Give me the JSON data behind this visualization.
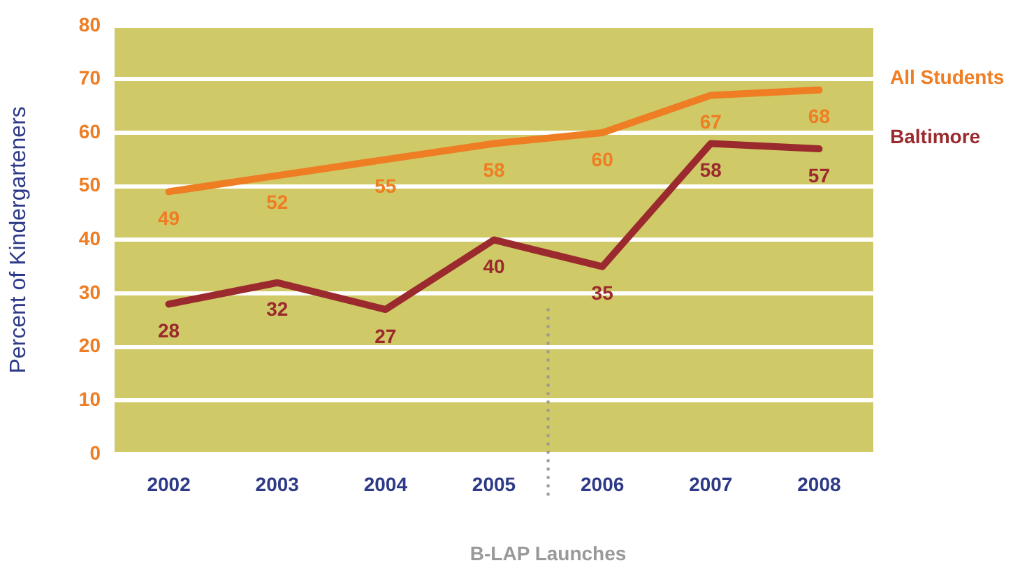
{
  "chart_data": {
    "type": "line",
    "ylabel": "Percent of Kindergarteners",
    "x": [
      2002,
      2003,
      2004,
      2005,
      2006,
      2007,
      2008
    ],
    "xlim": [
      2001.5,
      2008.5
    ],
    "xticks": [
      2002,
      2003,
      2004,
      2005,
      2006,
      2007,
      2008
    ],
    "ylim": [
      0,
      80
    ],
    "yticks": [
      0,
      10,
      20,
      30,
      40,
      50,
      60,
      70,
      80
    ],
    "grid": "y",
    "legend": "right",
    "marker": "none",
    "line_style": "solid",
    "data_labels": true,
    "series": [
      {
        "name": "All Students",
        "color": "#ee7d23",
        "values": [
          49,
          52,
          55,
          58,
          60,
          67,
          68
        ]
      },
      {
        "name": "Baltimore",
        "color": "#9b2a2e",
        "values": [
          28,
          32,
          27,
          40,
          35,
          58,
          57
        ]
      }
    ],
    "ref_lines": [
      {
        "axis": "x",
        "value": 2005.5,
        "label": "B-LAP Launches",
        "color": "#999999",
        "line_style": "dotted"
      }
    ]
  }
}
